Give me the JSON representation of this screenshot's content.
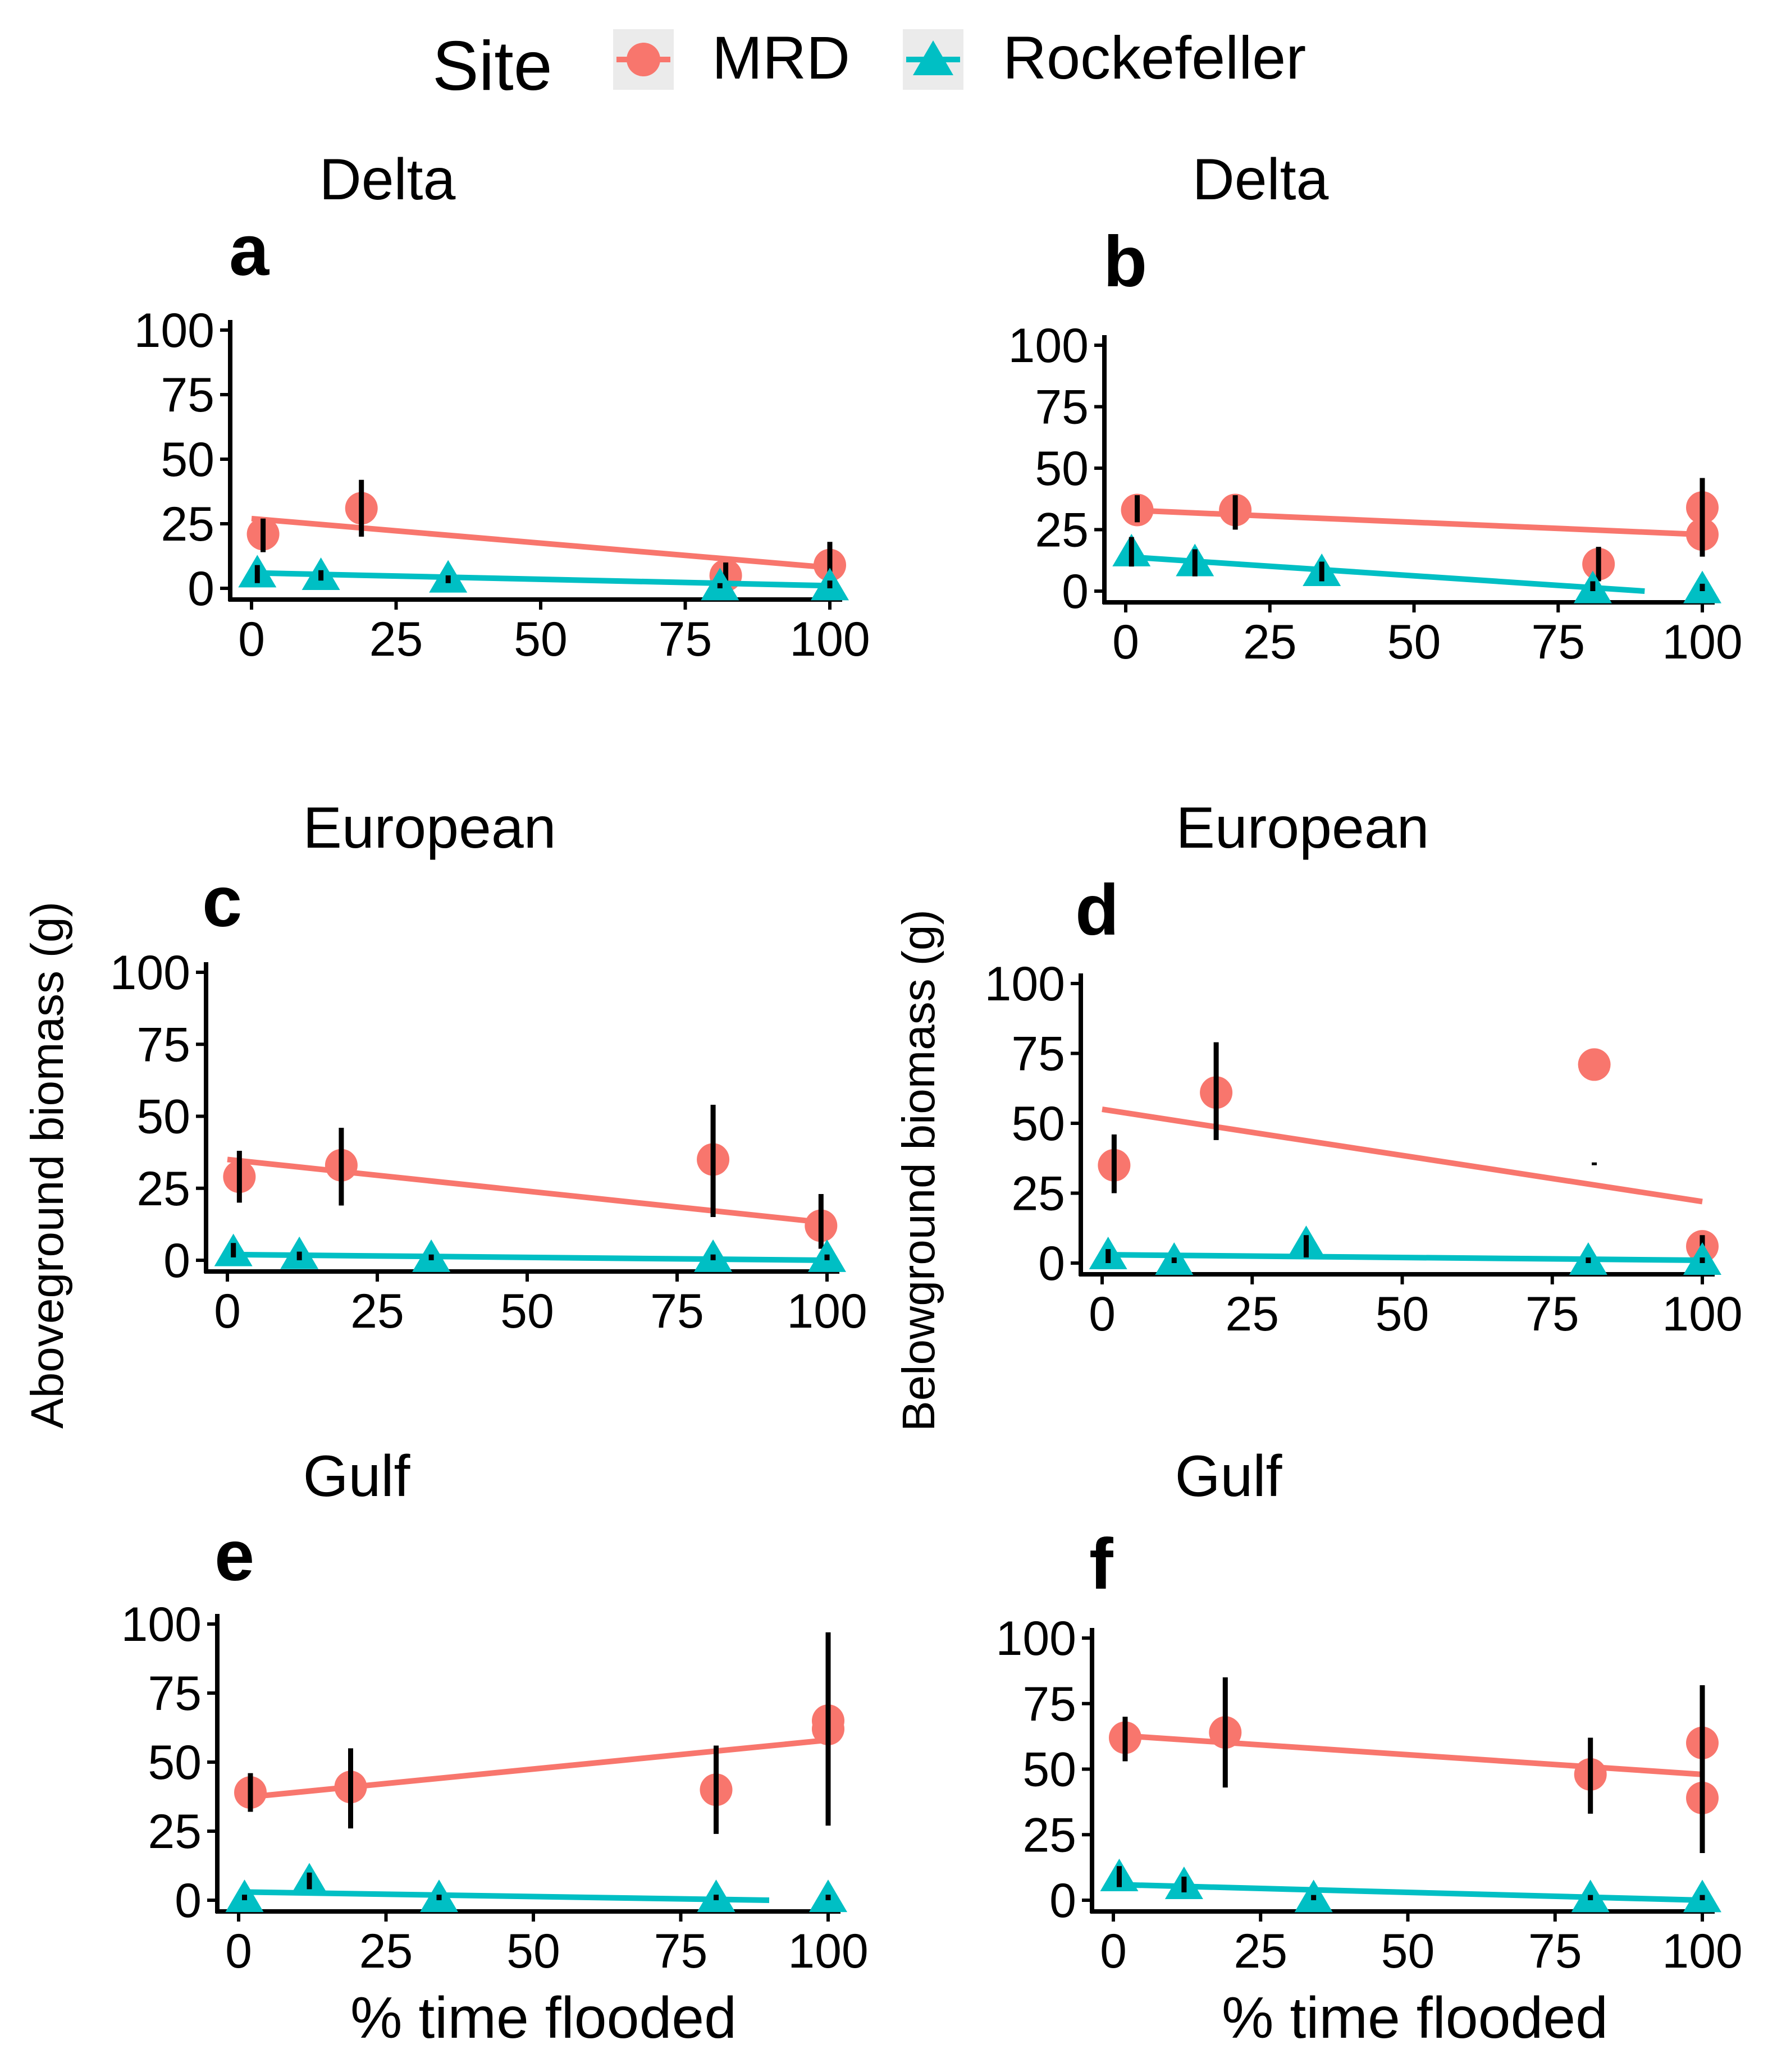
{
  "legend": {
    "title": "Site",
    "entries": [
      {
        "label": "MRD",
        "color": "#F8766D",
        "shape": "circle"
      },
      {
        "label": "Rockefeller",
        "color": "#00BFC4",
        "shape": "triangle"
      }
    ]
  },
  "y_labels": {
    "left": "Aboveground biomass (g)",
    "right": "Belowground biomass (g)"
  },
  "x_label": "% time flooded",
  "chart_data": [
    {
      "type": "scatter",
      "panel": "a",
      "title": "Delta",
      "xlabel": "% time flooded",
      "ylabel": "Aboveground biomass (g)",
      "xlim": [
        0,
        100
      ],
      "ylim": [
        0,
        100
      ],
      "xticks": [
        "0",
        "25",
        "50",
        "75",
        "100"
      ],
      "yticks": [
        "0",
        "25",
        "50",
        "75",
        "100"
      ],
      "series": [
        {
          "name": "MRD",
          "points": [
            [
              2,
              21,
              14,
              27
            ],
            [
              19,
              31,
              20,
              42
            ],
            [
              82,
              5,
              0,
              10
            ],
            [
              100,
              9,
              2,
              18
            ]
          ],
          "fit": [
            [
              0,
              27
            ],
            [
              100,
              8
            ]
          ]
        },
        {
          "name": "Rockefeller",
          "points": [
            [
              1,
              6,
              2,
              9
            ],
            [
              12,
              5,
              3,
              7
            ],
            [
              34,
              4,
              2,
              5
            ],
            [
              81,
              1,
              0,
              2
            ],
            [
              100,
              1,
              0,
              3
            ]
          ],
          "fit": [
            [
              0,
              6
            ],
            [
              100,
              1
            ]
          ]
        }
      ]
    },
    {
      "type": "scatter",
      "panel": "b",
      "title": "Delta",
      "xlabel": "% time flooded",
      "ylabel": "Belowground biomass (g)",
      "xlim": [
        0,
        100
      ],
      "ylim": [
        0,
        100
      ],
      "xticks": [
        "0",
        "25",
        "50",
        "75",
        "100"
      ],
      "yticks": [
        "0",
        "25",
        "50",
        "75",
        "100"
      ],
      "series": [
        {
          "name": "MRD",
          "points": [
            [
              2,
              33,
              28,
              39
            ],
            [
              19,
              33,
              25,
              39
            ],
            [
              82,
              11,
              4,
              18
            ],
            [
              100,
              34,
              22,
              46
            ],
            [
              100,
              23,
              14,
              32
            ]
          ],
          "fit": [
            [
              0,
              33
            ],
            [
              100,
              23
            ]
          ]
        },
        {
          "name": "Rockefeller",
          "points": [
            [
              1,
              16,
              10,
              22
            ],
            [
              12,
              12,
              6,
              17
            ],
            [
              34,
              8,
              4,
              12
            ],
            [
              81,
              1,
              0,
              4
            ],
            [
              100,
              1,
              0,
              3
            ]
          ],
          "fit": [
            [
              0,
              14
            ],
            [
              90,
              0
            ]
          ]
        }
      ]
    },
    {
      "type": "scatter",
      "panel": "c",
      "title": "European",
      "xlabel": "% time flooded",
      "ylabel": "Aboveground biomass (g)",
      "xlim": [
        0,
        100
      ],
      "ylim": [
        0,
        100
      ],
      "xticks": [
        "0",
        "25",
        "50",
        "75",
        "100"
      ],
      "yticks": [
        "0",
        "25",
        "50",
        "75",
        "100"
      ],
      "series": [
        {
          "name": "MRD",
          "points": [
            [
              2,
              29,
              20,
              38
            ],
            [
              19,
              33,
              19,
              46
            ],
            [
              81,
              35,
              15,
              54
            ],
            [
              99,
              12,
              4,
              23
            ]
          ],
          "fit": [
            [
              0,
              35
            ],
            [
              100,
              13
            ]
          ]
        },
        {
          "name": "Rockefeller",
          "points": [
            [
              1,
              3,
              1,
              6
            ],
            [
              12,
              2,
              0,
              3
            ],
            [
              34,
              1,
              0,
              2
            ],
            [
              81,
              1,
              0,
              2
            ],
            [
              100,
              1,
              0,
              2
            ]
          ],
          "fit": [
            [
              0,
              2
            ],
            [
              100,
              0
            ]
          ]
        }
      ]
    },
    {
      "type": "scatter",
      "panel": "d",
      "title": "European",
      "xlabel": "% time flooded",
      "ylabel": "Belowground biomass (g)",
      "xlim": [
        0,
        100
      ],
      "ylim": [
        0,
        100
      ],
      "xticks": [
        "0",
        "25",
        "50",
        "75",
        "100"
      ],
      "yticks": [
        "0",
        "25",
        "50",
        "75",
        "100"
      ],
      "series": [
        {
          "name": "MRD",
          "points": [
            [
              2,
              35,
              25,
              46
            ],
            [
              19,
              61,
              44,
              79
            ],
            [
              82,
              71,
              35,
              36
            ],
            [
              100,
              6,
              2,
              10
            ]
          ],
          "fit": [
            [
              0,
              55
            ],
            [
              100,
              22
            ]
          ]
        },
        {
          "name": "Rockefeller",
          "points": [
            [
              1,
              3,
              0,
              5
            ],
            [
              12,
              1,
              0,
              2
            ],
            [
              34,
              7,
              2,
              10
            ],
            [
              81,
              1,
              0,
              2
            ],
            [
              100,
              1,
              0,
              2
            ]
          ],
          "fit": [
            [
              0,
              3
            ],
            [
              100,
              1
            ]
          ]
        }
      ]
    },
    {
      "type": "scatter",
      "panel": "e",
      "title": "Gulf",
      "xlabel": "% time flooded",
      "ylabel": "Aboveground biomass (g)",
      "xlim": [
        0,
        100
      ],
      "ylim": [
        0,
        100
      ],
      "xticks": [
        "0",
        "25",
        "50",
        "75",
        "100"
      ],
      "yticks": [
        "0",
        "25",
        "50",
        "75",
        "100"
      ],
      "series": [
        {
          "name": "MRD",
          "points": [
            [
              2,
              39,
              32,
              46
            ],
            [
              19,
              41,
              26,
              55
            ],
            [
              81,
              40,
              24,
              56
            ],
            [
              100,
              65,
              45,
              86
            ],
            [
              100,
              62,
              27,
              97
            ]
          ],
          "fit": [
            [
              0,
              37
            ],
            [
              100,
              58
            ]
          ]
        },
        {
          "name": "Rockefeller",
          "points": [
            [
              1,
              1,
              0,
              2
            ],
            [
              12,
              7,
              4,
              10
            ],
            [
              34,
              1,
              0,
              2
            ],
            [
              81,
              1,
              0,
              2
            ],
            [
              100,
              1,
              0,
              2
            ]
          ],
          "fit": [
            [
              0,
              3
            ],
            [
              90,
              0
            ]
          ]
        }
      ]
    },
    {
      "type": "scatter",
      "panel": "f",
      "title": "Gulf",
      "xlabel": "% time flooded",
      "ylabel": "Belowground biomass (g)",
      "xlim": [
        0,
        100
      ],
      "ylim": [
        0,
        100
      ],
      "xticks": [
        "0",
        "25",
        "50",
        "75",
        "100"
      ],
      "yticks": [
        "0",
        "25",
        "50",
        "75",
        "100"
      ],
      "series": [
        {
          "name": "MRD",
          "points": [
            [
              2,
              62,
              53,
              70
            ],
            [
              19,
              64,
              43,
              85
            ],
            [
              81,
              48,
              33,
              62
            ],
            [
              100,
              60,
              38,
              82
            ],
            [
              100,
              39,
              18,
              58
            ]
          ],
          "fit": [
            [
              0,
              63
            ],
            [
              100,
              48
            ]
          ]
        },
        {
          "name": "Rockefeller",
          "points": [
            [
              1,
              9,
              5,
              13
            ],
            [
              12,
              6,
              3,
              9
            ],
            [
              34,
              1,
              0,
              2
            ],
            [
              81,
              1,
              0,
              2
            ],
            [
              100,
              1,
              0,
              2
            ]
          ],
          "fit": [
            [
              0,
              6
            ],
            [
              100,
              0
            ]
          ]
        }
      ]
    }
  ]
}
